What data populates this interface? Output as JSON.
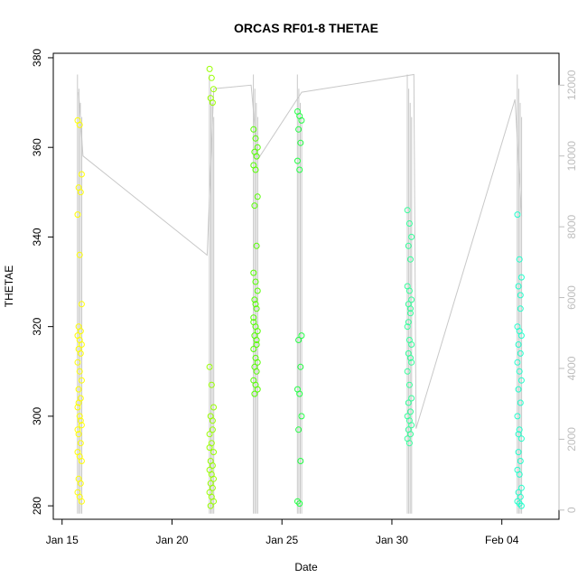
{
  "chart_data": {
    "type": "scatter",
    "title": "ORCAS RF01-8 THETAE",
    "xlabel": "Date",
    "ylabel": "THETAE",
    "x_ticks": [
      "Jan 15",
      "Jan 20",
      "Jan 25",
      "Jan 30",
      "Feb 04"
    ],
    "x_tick_days": [
      15,
      20,
      25,
      30,
      35
    ],
    "xlim_days": [
      14.6,
      37.6
    ],
    "ylim": [
      277,
      381
    ],
    "y_ticks": [
      280,
      300,
      320,
      340,
      360,
      380
    ],
    "y2_ticks": [
      0,
      2000,
      4000,
      6000,
      8000,
      10000,
      12000
    ],
    "y2lim": [
      -260,
      12900
    ],
    "grid": false,
    "series_secondary_color": "#c8c8c8",
    "flights": [
      {
        "day": 15.8,
        "color": "#ffff00",
        "thetae": [
          366,
          365,
          354,
          351,
          350,
          345,
          336,
          325,
          320,
          319,
          318,
          317,
          316,
          315,
          314,
          312,
          310,
          308,
          306,
          304,
          302,
          300,
          298,
          296,
          294,
          292,
          291,
          290,
          286,
          285,
          283,
          282,
          281,
          303,
          299,
          297
        ]
      },
      {
        "day": 21.8,
        "color": "#99ff00",
        "thetae": [
          377.5,
          375.5,
          373,
          371,
          370,
          311,
          307,
          302,
          300,
          297,
          296,
          294,
          292,
          290,
          289,
          288,
          287,
          286,
          285,
          284,
          283,
          282,
          281,
          280,
          299,
          293
        ]
      },
      {
        "day": 23.8,
        "color": "#55ff00",
        "thetae": [
          364,
          362,
          360,
          359,
          358,
          356,
          355,
          349,
          347,
          338,
          332,
          330,
          328,
          326,
          324,
          322,
          320,
          319,
          318,
          317,
          315,
          313,
          312,
          311,
          310,
          308,
          307,
          306,
          305,
          316,
          321,
          325
        ]
      },
      {
        "day": 25.8,
        "color": "#22ff44",
        "thetae": [
          368,
          367,
          366,
          364,
          361,
          357,
          355,
          318,
          317,
          311,
          306,
          305,
          300,
          297,
          290,
          281,
          280.5
        ]
      },
      {
        "day": 30.8,
        "color": "#33ff99",
        "thetae": [
          346,
          343,
          340,
          338,
          335,
          329,
          328,
          326,
          325,
          323,
          320,
          317,
          316,
          314,
          313,
          310,
          307,
          304,
          303,
          301,
          300,
          299,
          298,
          297,
          296,
          295,
          294,
          312,
          321,
          324
        ]
      },
      {
        "day": 35.8,
        "color": "#22ffcc",
        "thetae": [
          345,
          335,
          331,
          329,
          324,
          320,
          319,
          318,
          316,
          314,
          312,
          310,
          308,
          306,
          303,
          300,
          297,
          295,
          292,
          290,
          288,
          287,
          284,
          283,
          282,
          281,
          280.5,
          280,
          296,
          327
        ]
      }
    ],
    "secondary_connector": [
      [
        15.75,
        11800
      ],
      [
        15.95,
        10000
      ],
      [
        21.6,
        7200
      ],
      [
        21.9,
        11900
      ],
      [
        23.6,
        12000
      ],
      [
        23.9,
        9900
      ],
      [
        25.9,
        11800
      ],
      [
        31.0,
        12300
      ],
      [
        31.1,
        2300
      ],
      [
        35.6,
        11600
      ],
      [
        35.9,
        8300
      ]
    ]
  }
}
